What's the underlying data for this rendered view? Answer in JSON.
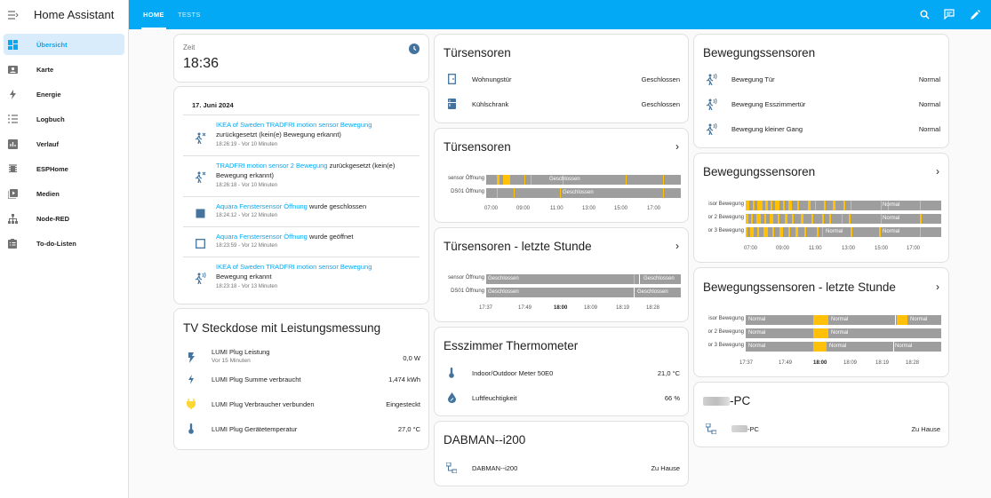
{
  "sidebar": {
    "title": "Home Assistant",
    "items": [
      {
        "label": "Übersicht",
        "icon": "view-dashboard-icon"
      },
      {
        "label": "Karte",
        "icon": "map-icon"
      },
      {
        "label": "Energie",
        "icon": "lightning-bolt-icon"
      },
      {
        "label": "Logbuch",
        "icon": "logbook-list-icon"
      },
      {
        "label": "Verlauf",
        "icon": "chart-box-icon"
      },
      {
        "label": "ESPHome",
        "icon": "esphome-icon"
      },
      {
        "label": "Medien",
        "icon": "media-play-icon"
      },
      {
        "label": "Node-RED",
        "icon": "sitemap-icon"
      },
      {
        "label": "To-do-Listen",
        "icon": "clipboard-list-icon"
      }
    ]
  },
  "header": {
    "tabs": [
      {
        "label": "HOME"
      },
      {
        "label": "TESTS"
      }
    ],
    "icons": [
      "search-icon",
      "assist-chat-icon",
      "edit-pencil-icon"
    ]
  },
  "cards": {
    "time": {
      "label": "Zeit",
      "value": "18:36",
      "icon": "clock-icon"
    },
    "logbook": {
      "date": "17. Juni 2024",
      "entries": [
        {
          "link": "IKEA of Sweden TRADFRI motion sensor Bewegung",
          "text": "zurückgesetzt (kein(e) Bewegung erkannt)",
          "time": "18:26:19 - Vor 10 Minuten",
          "icon": "motion-sensor-off-icon"
        },
        {
          "link": "TRADFRI motion sensor 2 Bewegung",
          "text": "zurückgesetzt (kein(e) Bewegung erkannt)",
          "time": "18:26:18 - Vor 10 Minuten",
          "icon": "motion-sensor-off-icon"
        },
        {
          "link": "Aquara Fenstersensor Öffnung",
          "text": "wurde geschlossen",
          "time": "18:24:12 - Vor 12 Minuten",
          "icon": "square-filled-icon"
        },
        {
          "link": "Aquara Fenstersensor Öffnung",
          "text": "wurde geöffnet",
          "time": "18:23:59 - Vor 12 Minuten",
          "icon": "square-outline-icon"
        },
        {
          "link": "IKEA of Sweden TRADFRI motion sensor Bewegung",
          "text": "Bewegung erkannt",
          "time": "18:23:18 - Vor 13 Minuten",
          "icon": "motion-sensor-icon"
        }
      ]
    },
    "tv": {
      "title": "TV Steckdose mit Leistungsmessung",
      "rows": [
        {
          "name": "LUMI Plug Leistung",
          "sub": "Vor 15 Minuten",
          "state": "0,0 W",
          "icon": "flash-icon"
        },
        {
          "name": "LUMI Plug Summe verbraucht",
          "state": "1,474 kWh",
          "icon": "lightning-bolt-icon"
        },
        {
          "name": "LUMI Plug Verbraucher verbunden",
          "state": "Eingesteckt",
          "icon": "power-plug-icon"
        },
        {
          "name": "LUMI Plug Gerätetemperatur",
          "state": "27,0 °C",
          "icon": "thermometer-icon"
        }
      ]
    },
    "door_entities": {
      "title": "Türsensoren",
      "rows": [
        {
          "name": "Wohnungstür",
          "state": "Geschlossen",
          "icon": "door-closed-icon"
        },
        {
          "name": "Kühlschrank",
          "state": "Geschlossen",
          "icon": "fridge-icon"
        }
      ]
    },
    "door_history": {
      "title": "Türsensoren",
      "series": [
        {
          "name": "sensor Öffnung",
          "label": "Geschlossen"
        },
        {
          "name": "DS01 Öffnung",
          "label": "Geschlossen"
        }
      ],
      "ticks": [
        "07:00",
        "09:00",
        "11:00",
        "13:00",
        "15:00",
        "17:00"
      ]
    },
    "door_hour": {
      "title": "Türsensoren - letzte Stunde",
      "series": [
        {
          "name": "sensor Öffnung",
          "labels": [
            "Geschlossen",
            "Geschlossen"
          ]
        },
        {
          "name": "DS01 Öffnung",
          "labels": [
            "Geschlossen",
            "Geschlossen"
          ]
        }
      ],
      "ticks": [
        "17:37",
        "17:49",
        "18:00",
        "18:09",
        "18:19",
        "18:28"
      ]
    },
    "thermo": {
      "title": "Esszimmer Thermometer",
      "rows": [
        {
          "name": "Indoor/Outdoor Meter 50E0",
          "state": "21,0 °C",
          "icon": "thermometer-icon"
        },
        {
          "name": "Luftfeuchtigkeit",
          "state": "66 %",
          "icon": "water-percent-icon"
        }
      ]
    },
    "dabman": {
      "title": "DABMAN--i200",
      "rows": [
        {
          "name": "DABMAN--i200",
          "state": "Zu Hause",
          "icon": "lan-connect-icon"
        }
      ]
    },
    "motion_entities": {
      "title": "Bewegungssensoren",
      "rows": [
        {
          "name": "Bewegung Tür",
          "state": "Normal",
          "icon": "motion-sensor-icon"
        },
        {
          "name": "Bewegung Esszimmertür",
          "state": "Normal",
          "icon": "motion-sensor-icon"
        },
        {
          "name": "Bewegung kleiner Gang",
          "state": "Normal",
          "icon": "motion-sensor-icon"
        }
      ]
    },
    "motion_history": {
      "title": "Bewegungssensoren",
      "series": [
        {
          "name": "isor Bewegung",
          "labels": [
            "Normal"
          ]
        },
        {
          "name": "or 2 Bewegung",
          "labels": [
            "Normal"
          ]
        },
        {
          "name": "or 3 Bewegung",
          "labels": [
            "Normal",
            "Normal"
          ]
        }
      ],
      "ticks": [
        "07:00",
        "09:00",
        "11:00",
        "13:00",
        "15:00",
        "17:00"
      ]
    },
    "motion_hour": {
      "title": "Bewegungssensoren - letzte Stunde",
      "series": [
        {
          "name": "isor Bewegung",
          "labels": [
            "Normal",
            "Normal",
            "Normal"
          ]
        },
        {
          "name": "or 2 Bewegung",
          "labels": [
            "Normal",
            "Normal"
          ]
        },
        {
          "name": "or 3 Bewegung",
          "labels": [
            "Normal",
            "Normal",
            "Normal"
          ]
        }
      ],
      "ticks": [
        "17:37",
        "17:49",
        "18:00",
        "18:09",
        "18:19",
        "18:28"
      ]
    },
    "pc": {
      "title": "-PC",
      "rows": [
        {
          "name": "-PC",
          "state": "Zu Hause",
          "icon": "lan-connect-icon"
        }
      ]
    }
  },
  "colors": {
    "accent": "#03a9f4",
    "state_on": "#ffc107",
    "state_off": "#9e9e9e",
    "icon": "#44739e"
  }
}
